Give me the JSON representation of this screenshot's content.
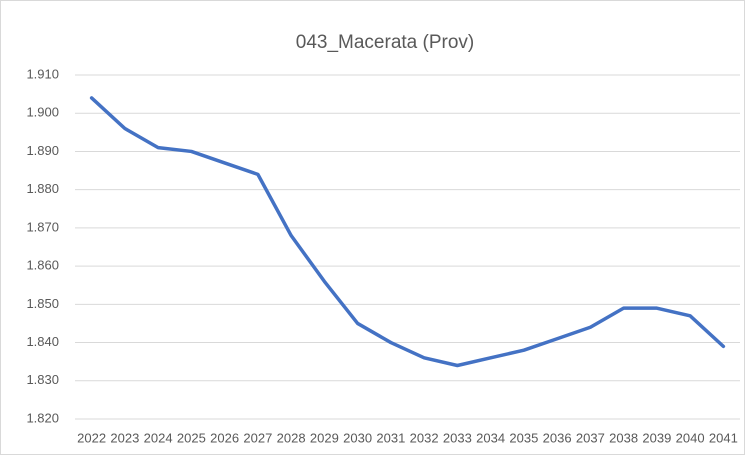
{
  "chart_data": {
    "type": "line",
    "title": "043_Macerata (Prov)",
    "categories": [
      "2022",
      "2023",
      "2024",
      "2025",
      "2026",
      "2027",
      "2028",
      "2029",
      "2030",
      "2031",
      "2032",
      "2033",
      "2034",
      "2035",
      "2036",
      "2037",
      "2038",
      "2039",
      "2040",
      "2041"
    ],
    "series": [
      {
        "name": "043_Macerata (Prov)",
        "color": "#4472c4",
        "values": [
          1904,
          1896,
          1891,
          1890,
          1887,
          1884,
          1868,
          1856,
          1845,
          1840,
          1836,
          1834,
          1836,
          1838,
          1841,
          1844,
          1849,
          1849,
          1847,
          1839
        ]
      }
    ],
    "ylim": [
      1820,
      1910
    ],
    "yticks": [
      {
        "value": 1820,
        "label": "1.820"
      },
      {
        "value": 1830,
        "label": "1.830"
      },
      {
        "value": 1840,
        "label": "1.840"
      },
      {
        "value": 1850,
        "label": "1.850"
      },
      {
        "value": 1860,
        "label": "1.860"
      },
      {
        "value": 1870,
        "label": "1.870"
      },
      {
        "value": 1880,
        "label": "1.880"
      },
      {
        "value": 1890,
        "label": "1.890"
      },
      {
        "value": 1900,
        "label": "1.900"
      },
      {
        "value": 1910,
        "label": "1.910"
      }
    ],
    "grid": true
  }
}
